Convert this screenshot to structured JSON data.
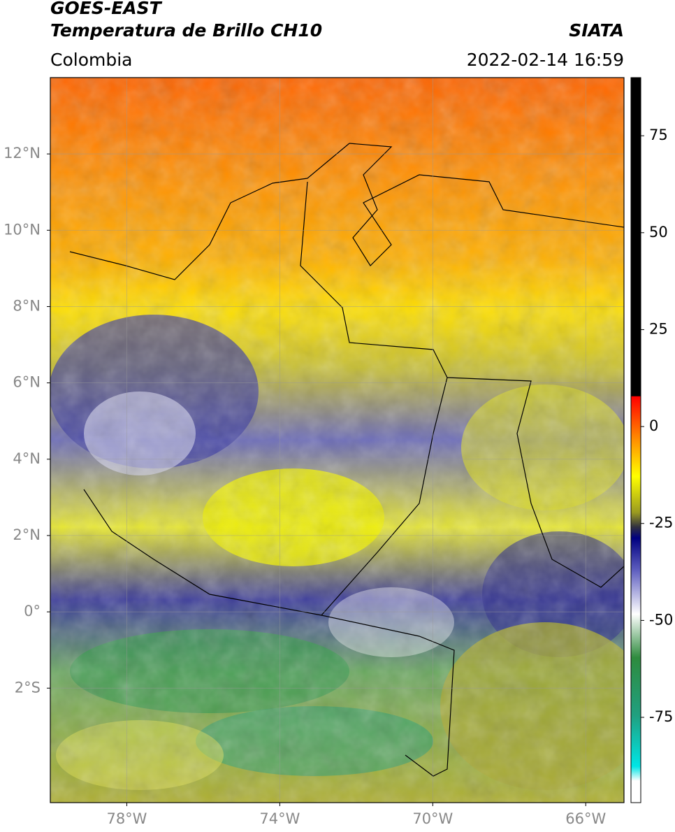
{
  "header": {
    "title": "GOES-EAST",
    "subtitle": "Temperatura de Brillo CH10",
    "source": "SIATA",
    "region": "Colombia",
    "datetime": "2022-02-14 16:59"
  },
  "map": {
    "xlim": [
      -80,
      -65
    ],
    "ylim": [
      -5,
      14
    ],
    "grid": true,
    "xticks": [
      {
        "value": -78,
        "label": "78°W"
      },
      {
        "value": -74,
        "label": "74°W"
      },
      {
        "value": -70,
        "label": "70°W"
      },
      {
        "value": -66,
        "label": "66°W"
      }
    ],
    "yticks": [
      {
        "value": 12,
        "label": "12°N"
      },
      {
        "value": 10,
        "label": "10°N"
      },
      {
        "value": 8,
        "label": "8°N"
      },
      {
        "value": 6,
        "label": "6°N"
      },
      {
        "value": 4,
        "label": "4°N"
      },
      {
        "value": 2,
        "label": "2°N"
      },
      {
        "value": 0,
        "label": "0°"
      },
      {
        "value": -2,
        "label": "2°S"
      }
    ]
  },
  "colorbar": {
    "lim": [
      -97,
      90
    ],
    "ticks": [
      75,
      50,
      25,
      0,
      -25,
      -50,
      -75
    ]
  }
}
